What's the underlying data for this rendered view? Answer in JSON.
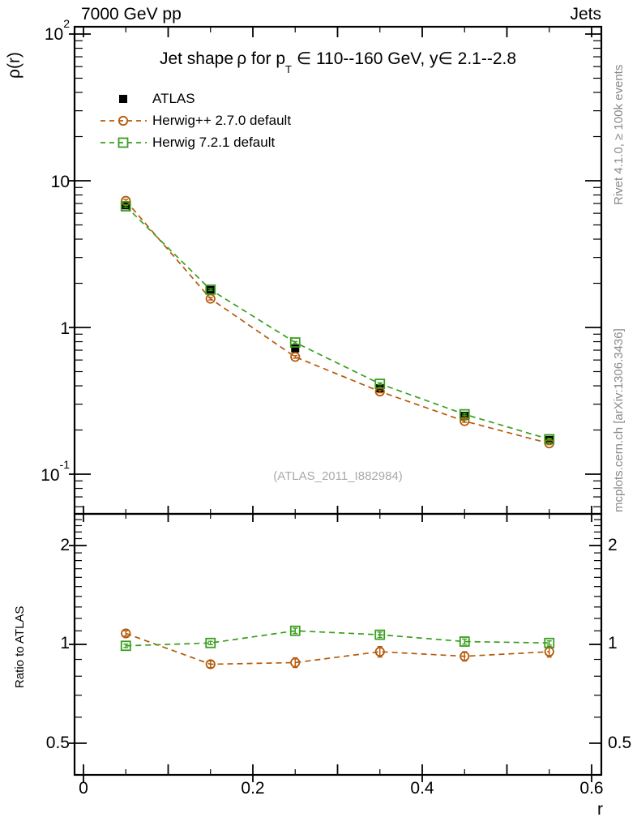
{
  "header": {
    "top_left": "7000 GeV pp",
    "top_right": "Jets"
  },
  "title": {
    "pre": "Jet shape ρ for p",
    "sub": "T",
    "post": " ∈ 110--160 GeV, y∈ 2.1--2.8"
  },
  "watermark": "(ATLAS_2011_I882984)",
  "side_labels": {
    "top": "Rivet 4.1.0, ≥ 100k events",
    "bottom": "mcplots.cern.ch [arXiv:1306.3436]"
  },
  "legend": {
    "items": [
      {
        "label": "ATLAS"
      },
      {
        "label": "Herwig++ 2.7.0 default"
      },
      {
        "label": "Herwig 7.2.1 default"
      }
    ]
  },
  "axes": {
    "main": {
      "ylabel": "ρ(r)",
      "ytick_labels": [
        {
          "base": "10",
          "exp": "2"
        },
        {
          "base": "10",
          "exp": ""
        },
        {
          "base": "1",
          "exp": ""
        },
        {
          "base": "10",
          "exp": "-1"
        }
      ]
    },
    "ratio": {
      "ylabel": "Ratio to ATLAS",
      "ytick_labels": [
        "2",
        "1",
        "0.5"
      ]
    },
    "x": {
      "label": "r",
      "tick_labels": [
        "0",
        "0.2",
        "0.4",
        "0.6"
      ]
    }
  },
  "colors": {
    "atlas": "#000000",
    "herwigpp": "#b45a0c",
    "herwig7": "#3a9e1e",
    "gray_text": "#8a8a8a",
    "watermark": "#a9a9a9",
    "frame": "#000000"
  },
  "chart_data": {
    "type": "scatter-line",
    "title": "Jet shape ρ for p_T ∈ 110--160 GeV, y ∈ 2.1--2.8",
    "xlabel": "r",
    "ylabel": "ρ(r)",
    "ratio_ylabel": "Ratio to ATLAS",
    "legend_position": "top-left",
    "grid": false,
    "x": [
      0.05,
      0.15,
      0.25,
      0.35,
      0.45,
      0.55
    ],
    "xlim": [
      -0.0105,
      0.6115
    ],
    "main_ylim": [
      0.054,
      112
    ],
    "main_yscale": "log",
    "ratio_ylim": [
      0.4,
      2.5
    ],
    "ratio_yscale": "log",
    "x_major_tick_step": 0.1,
    "x_minor_tick_step": 0.05,
    "x_labeled_ticks": [
      0,
      0.2,
      0.4,
      0.6
    ],
    "main_y_decades": [
      100,
      10,
      1,
      0.1
    ],
    "ratio_y_majors": [
      2,
      1,
      0.5
    ],
    "ratio_reference_line": 1,
    "series": [
      {
        "name": "ATLAS",
        "marker": "filled-square",
        "color": "#000000",
        "line": "none",
        "values": [
          6.8,
          1.8,
          0.72,
          0.385,
          0.25,
          0.171
        ],
        "rel_err": [
          0.04,
          0.03,
          0.03,
          0.03,
          0.035,
          0.04
        ]
      },
      {
        "name": "Herwig++ 2.7.0 default",
        "marker": "open-circle",
        "color": "#b45a0c",
        "line": "dashed",
        "values": [
          7.3,
          1.57,
          0.63,
          0.366,
          0.23,
          0.162
        ],
        "rel_err": [
          0.02,
          0.02,
          0.02,
          0.02,
          0.02,
          0.02
        ],
        "ratio": [
          1.08,
          0.87,
          0.88,
          0.95,
          0.92,
          0.95
        ],
        "ratio_err": [
          0.02,
          0.02,
          0.03,
          0.035,
          0.03,
          0.035
        ]
      },
      {
        "name": "Herwig 7.2.1 default",
        "marker": "open-square",
        "color": "#3a9e1e",
        "line": "dashed",
        "values": [
          6.7,
          1.81,
          0.79,
          0.413,
          0.256,
          0.173
        ],
        "rel_err": [
          0.015,
          0.015,
          0.015,
          0.015,
          0.015,
          0.015
        ],
        "ratio": [
          0.99,
          1.01,
          1.1,
          1.07,
          1.02,
          1.01
        ],
        "ratio_err": [
          0.012,
          0.012,
          0.02,
          0.02,
          0.018,
          0.015
        ]
      }
    ]
  }
}
